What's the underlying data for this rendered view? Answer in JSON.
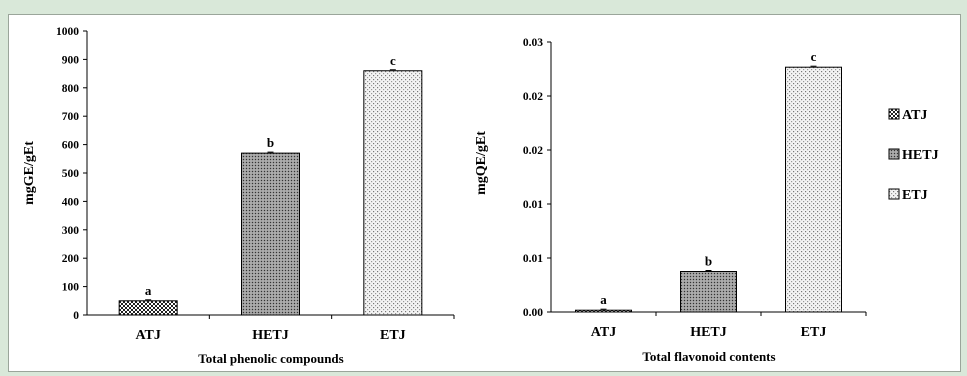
{
  "chart_data": [
    {
      "type": "bar",
      "categories": [
        "ATJ",
        "HETJ",
        "ETJ"
      ],
      "series": [
        {
          "values": [
            50,
            570,
            860
          ]
        }
      ],
      "annotations": [
        "a",
        "b",
        "c"
      ],
      "title": "",
      "xlabel": "Total phenolic compounds",
      "ylabel": "mgGE/gEt",
      "ylim": [
        0,
        1000
      ],
      "yticks": [
        "0",
        "100",
        "200",
        "300",
        "400",
        "500",
        "600",
        "700",
        "800",
        "900",
        "1000"
      ],
      "grid": false
    },
    {
      "type": "bar",
      "categories": [
        "ATJ",
        "HETJ",
        "ETJ"
      ],
      "series": [
        {
          "values": [
            0.0002,
            0.0045,
            0.0272
          ]
        }
      ],
      "annotations": [
        "a",
        "b",
        "c"
      ],
      "title": "",
      "xlabel": "Total flavonoid contents",
      "ylabel": "mgQE/gEt",
      "ylim": [
        0,
        0.03
      ],
      "yticks": [
        "0.00",
        "0.01",
        "0.01",
        "0.02",
        "0.02",
        "0.03"
      ],
      "grid": false
    }
  ],
  "legend": {
    "placement": "right",
    "items": [
      {
        "label": "ATJ",
        "pattern": "dense-check"
      },
      {
        "label": "HETJ",
        "pattern": "fine-dots"
      },
      {
        "label": "ETJ",
        "pattern": "light-dots"
      }
    ]
  },
  "colors": {
    "background": "#d9e8d9",
    "panel": "#ffffff",
    "axis": "#000000"
  }
}
